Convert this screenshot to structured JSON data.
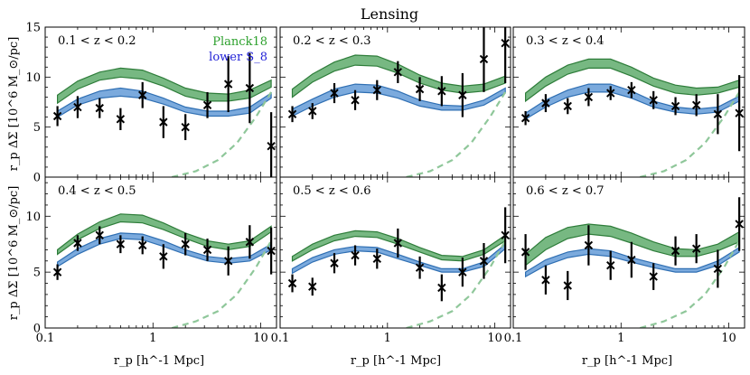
{
  "title": "Lensing",
  "ylabel": "r_p ΔΣ [10^6 M_⊙/pc]",
  "xlabel": "r_p [h^-1 Mpc]",
  "legend": {
    "entries": [
      {
        "name": "Planck18",
        "color": "#2ca02c"
      },
      {
        "name": "lower S_8",
        "color": "#1f1fd6"
      }
    ],
    "placement": "top-right of first panel"
  },
  "colors": {
    "planck_fill": "#3d9a4d",
    "planck_edge": "#2e7d3a",
    "lower_fill": "#4f8ed1",
    "lower_edge": "#2f6fb3",
    "dashed": "#8fc79a",
    "points": "#000000"
  },
  "x_ticks": [
    "0.1",
    "1",
    "10"
  ],
  "chart_data": [
    {
      "type": "line",
      "label": "0.1 < z < 0.2",
      "xscale": "log",
      "xlim": [
        0.1,
        14
      ],
      "ylim": [
        0,
        15
      ],
      "yticks": [
        0,
        5,
        10,
        15
      ],
      "r": [
        0.13,
        0.2,
        0.32,
        0.5,
        0.8,
        1.25,
        2.0,
        3.2,
        5.0,
        7.9,
        12.5
      ],
      "planck_band": {
        "lower": [
          7.4,
          8.8,
          9.7,
          10.0,
          9.8,
          9.1,
          8.1,
          7.6,
          7.6,
          7.9,
          9.0
        ],
        "upper": [
          8.2,
          9.6,
          10.5,
          10.9,
          10.7,
          9.9,
          8.9,
          8.4,
          8.3,
          8.7,
          9.7
        ]
      },
      "lower_band": {
        "lower": [
          6.0,
          7.2,
          7.9,
          8.1,
          7.9,
          7.3,
          6.5,
          6.1,
          6.1,
          6.4,
          7.9
        ],
        "upper": [
          6.6,
          7.8,
          8.6,
          8.9,
          8.6,
          7.9,
          7.0,
          6.6,
          6.6,
          7.0,
          8.4
        ]
      },
      "dashed": {
        "r": [
          1.5,
          2.5,
          4.0,
          6.0,
          9.0,
          12.5
        ],
        "y": [
          0,
          0.6,
          1.7,
          3.4,
          6.0,
          8.5
        ]
      },
      "points": {
        "y": [
          6.1,
          7.0,
          6.9,
          5.8,
          8.2,
          5.5,
          5.0,
          7.2,
          9.3,
          8.9,
          3.1
        ],
        "err": [
          1.0,
          1.1,
          1.0,
          1.1,
          1.3,
          1.6,
          1.3,
          1.3,
          2.8,
          3.5,
          3.4
        ]
      }
    },
    {
      "type": "line",
      "label": "0.2 < z < 0.3",
      "xscale": "log",
      "xlim": [
        0.1,
        14
      ],
      "ylim": [
        0,
        15
      ],
      "yticks": [
        0,
        5,
        10,
        15
      ],
      "r": [
        0.13,
        0.2,
        0.32,
        0.5,
        0.8,
        1.25,
        2.0,
        3.2,
        5.0,
        7.9,
        12.5
      ],
      "planck_band": {
        "lower": [
          8.0,
          9.5,
          10.6,
          11.2,
          11.1,
          10.4,
          9.4,
          8.7,
          8.4,
          8.6,
          9.4
        ],
        "upper": [
          8.8,
          10.3,
          11.5,
          12.2,
          12.1,
          11.3,
          10.2,
          9.4,
          9.1,
          9.3,
          10.1
        ]
      },
      "lower_band": {
        "lower": [
          6.1,
          7.1,
          8.0,
          8.5,
          8.4,
          7.9,
          7.1,
          6.7,
          6.7,
          7.2,
          8.4
        ],
        "upper": [
          6.8,
          7.8,
          8.8,
          9.3,
          9.2,
          8.6,
          7.7,
          7.2,
          7.1,
          7.7,
          8.9
        ]
      },
      "dashed": {
        "r": [
          1.5,
          2.5,
          4.0,
          6.0,
          9.0,
          12.5
        ],
        "y": [
          0,
          0.6,
          1.7,
          3.4,
          6.0,
          8.5
        ]
      },
      "points": {
        "y": [
          6.3,
          6.6,
          8.4,
          7.7,
          8.7,
          10.5,
          8.8,
          8.6,
          8.2,
          11.8,
          13.4
        ],
        "err": [
          0.8,
          0.8,
          1.0,
          1.0,
          1.0,
          1.1,
          1.2,
          1.5,
          2.2,
          3.3,
          4.0
        ]
      }
    },
    {
      "type": "line",
      "label": "0.3 < z < 0.4",
      "xscale": "log",
      "xlim": [
        0.1,
        14
      ],
      "ylim": [
        0,
        15
      ],
      "yticks": [
        0,
        5,
        10,
        15
      ],
      "r": [
        0.13,
        0.2,
        0.32,
        0.5,
        0.8,
        1.25,
        2.0,
        3.2,
        5.0,
        7.9,
        12.5
      ],
      "planck_band": {
        "lower": [
          7.6,
          9.1,
          10.3,
          10.9,
          10.9,
          10.1,
          9.1,
          8.4,
          8.2,
          8.4,
          9.0
        ],
        "upper": [
          8.4,
          10.0,
          11.2,
          11.8,
          11.8,
          11.0,
          9.9,
          9.2,
          8.9,
          9.0,
          9.7
        ]
      },
      "lower_band": {
        "lower": [
          5.8,
          7.0,
          8.0,
          8.5,
          8.5,
          7.9,
          7.0,
          6.5,
          6.3,
          6.5,
          7.6
        ],
        "upper": [
          6.4,
          7.7,
          8.7,
          9.3,
          9.3,
          8.6,
          7.6,
          7.0,
          6.8,
          7.0,
          8.1
        ]
      },
      "dashed": {
        "r": [
          1.5,
          2.5,
          4.0,
          6.0,
          9.0,
          12.5
        ],
        "y": [
          0,
          0.6,
          1.7,
          3.4,
          6.0,
          8.5
        ]
      },
      "points": {
        "y": [
          5.9,
          7.4,
          7.1,
          8.0,
          8.4,
          8.7,
          7.7,
          7.1,
          7.2,
          6.3,
          6.4
        ],
        "err": [
          0.7,
          0.9,
          0.8,
          0.9,
          0.7,
          0.8,
          0.9,
          0.9,
          1.1,
          2.0,
          3.8
        ]
      }
    },
    {
      "type": "line",
      "label": "0.4 < z < 0.5",
      "xscale": "log",
      "xlim": [
        0.1,
        14
      ],
      "ylim": [
        0,
        13.5
      ],
      "yticks": [
        0,
        5,
        10
      ],
      "r": [
        0.13,
        0.2,
        0.32,
        0.5,
        0.8,
        1.25,
        2.0,
        3.2,
        5.0,
        7.9,
        12.5
      ],
      "planck_band": {
        "lower": [
          6.6,
          7.9,
          8.9,
          9.5,
          9.4,
          8.8,
          8.0,
          7.3,
          7.0,
          7.3,
          8.6
        ],
        "upper": [
          7.0,
          8.4,
          9.5,
          10.2,
          10.1,
          9.4,
          8.5,
          7.8,
          7.5,
          7.8,
          9.1
        ]
      },
      "lower_band": {
        "lower": [
          5.5,
          6.6,
          7.5,
          8.0,
          7.9,
          7.3,
          6.6,
          6.0,
          5.8,
          6.0,
          7.0
        ],
        "upper": [
          5.9,
          7.1,
          8.0,
          8.5,
          8.4,
          7.8,
          7.0,
          6.4,
          6.2,
          6.4,
          7.5
        ]
      },
      "dashed": {
        "r": [
          1.5,
          2.5,
          4.0,
          6.0,
          9.0,
          12.5
        ],
        "y": [
          0,
          0.6,
          1.5,
          3.0,
          5.4,
          7.8
        ]
      },
      "points": {
        "y": [
          5.0,
          7.6,
          8.3,
          7.5,
          7.4,
          6.4,
          7.5,
          7.0,
          6.0,
          7.7,
          6.9
        ],
        "err": [
          0.7,
          0.7,
          0.8,
          0.8,
          0.8,
          1.1,
          1.0,
          1.0,
          1.3,
          1.5,
          2.1
        ]
      }
    },
    {
      "type": "line",
      "label": "0.5 < z < 0.6",
      "xscale": "log",
      "xlim": [
        0.1,
        14
      ],
      "ylim": [
        0,
        13.5
      ],
      "yticks": [
        0,
        5,
        10
      ],
      "r": [
        0.13,
        0.2,
        0.32,
        0.5,
        0.8,
        1.25,
        2.0,
        3.2,
        5.0,
        7.9,
        12.5
      ],
      "planck_band": {
        "lower": [
          6.0,
          7.0,
          7.8,
          8.2,
          8.1,
          7.5,
          6.8,
          6.1,
          6.0,
          6.6,
          7.8
        ],
        "upper": [
          6.4,
          7.5,
          8.3,
          8.7,
          8.6,
          8.0,
          7.2,
          6.5,
          6.4,
          7.0,
          8.3
        ]
      },
      "lower_band": {
        "lower": [
          4.9,
          5.9,
          6.6,
          6.9,
          6.8,
          6.2,
          5.6,
          5.0,
          5.0,
          5.5,
          7.1
        ],
        "upper": [
          5.3,
          6.3,
          7.0,
          7.3,
          7.2,
          6.6,
          5.9,
          5.3,
          5.3,
          5.9,
          7.5
        ]
      },
      "dashed": {
        "r": [
          1.5,
          2.5,
          4.0,
          6.0,
          9.0,
          12.5
        ],
        "y": [
          0,
          0.6,
          1.5,
          3.0,
          5.4,
          7.8
        ]
      },
      "points": {
        "y": [
          4.0,
          3.7,
          5.8,
          6.5,
          6.2,
          7.6,
          5.4,
          3.6,
          5.0,
          6.0,
          8.3
        ],
        "err": [
          0.8,
          0.8,
          0.9,
          0.9,
          0.9,
          1.3,
          1.0,
          1.2,
          1.3,
          1.6,
          2.5
        ]
      }
    },
    {
      "type": "line",
      "label": "0.6 < z < 0.7",
      "xscale": "log",
      "xlim": [
        0.1,
        14
      ],
      "ylim": [
        0,
        13.5
      ],
      "yticks": [
        0,
        5,
        10
      ],
      "r": [
        0.13,
        0.2,
        0.32,
        0.5,
        0.8,
        1.25,
        2.0,
        3.2,
        5.0,
        7.9,
        12.5
      ],
      "planck_band": {
        "lower": [
          5.6,
          7.0,
          8.0,
          8.4,
          8.2,
          7.6,
          6.9,
          6.4,
          6.4,
          6.9,
          7.7
        ],
        "upper": [
          6.6,
          8.1,
          9.0,
          9.3,
          9.1,
          8.5,
          7.7,
          7.1,
          7.0,
          7.5,
          8.6
        ]
      },
      "lower_band": {
        "lower": [
          4.6,
          5.6,
          6.3,
          6.6,
          6.4,
          5.9,
          5.4,
          5.0,
          5.0,
          5.6,
          6.8
        ],
        "upper": [
          5.0,
          6.1,
          6.8,
          7.1,
          6.9,
          6.3,
          5.8,
          5.3,
          5.3,
          6.0,
          7.2
        ]
      },
      "dashed": {
        "r": [
          1.5,
          2.5,
          4.0,
          6.0,
          9.0,
          12.5
        ],
        "y": [
          0,
          0.6,
          1.5,
          3.0,
          5.4,
          7.8
        ]
      },
      "points": {
        "y": [
          6.8,
          4.3,
          3.8,
          7.4,
          5.6,
          6.1,
          4.6,
          6.9,
          7.1,
          5.3,
          9.3
        ],
        "err": [
          1.6,
          1.3,
          1.3,
          1.8,
          1.3,
          1.6,
          1.2,
          1.3,
          1.3,
          1.7,
          2.4
        ]
      }
    }
  ]
}
